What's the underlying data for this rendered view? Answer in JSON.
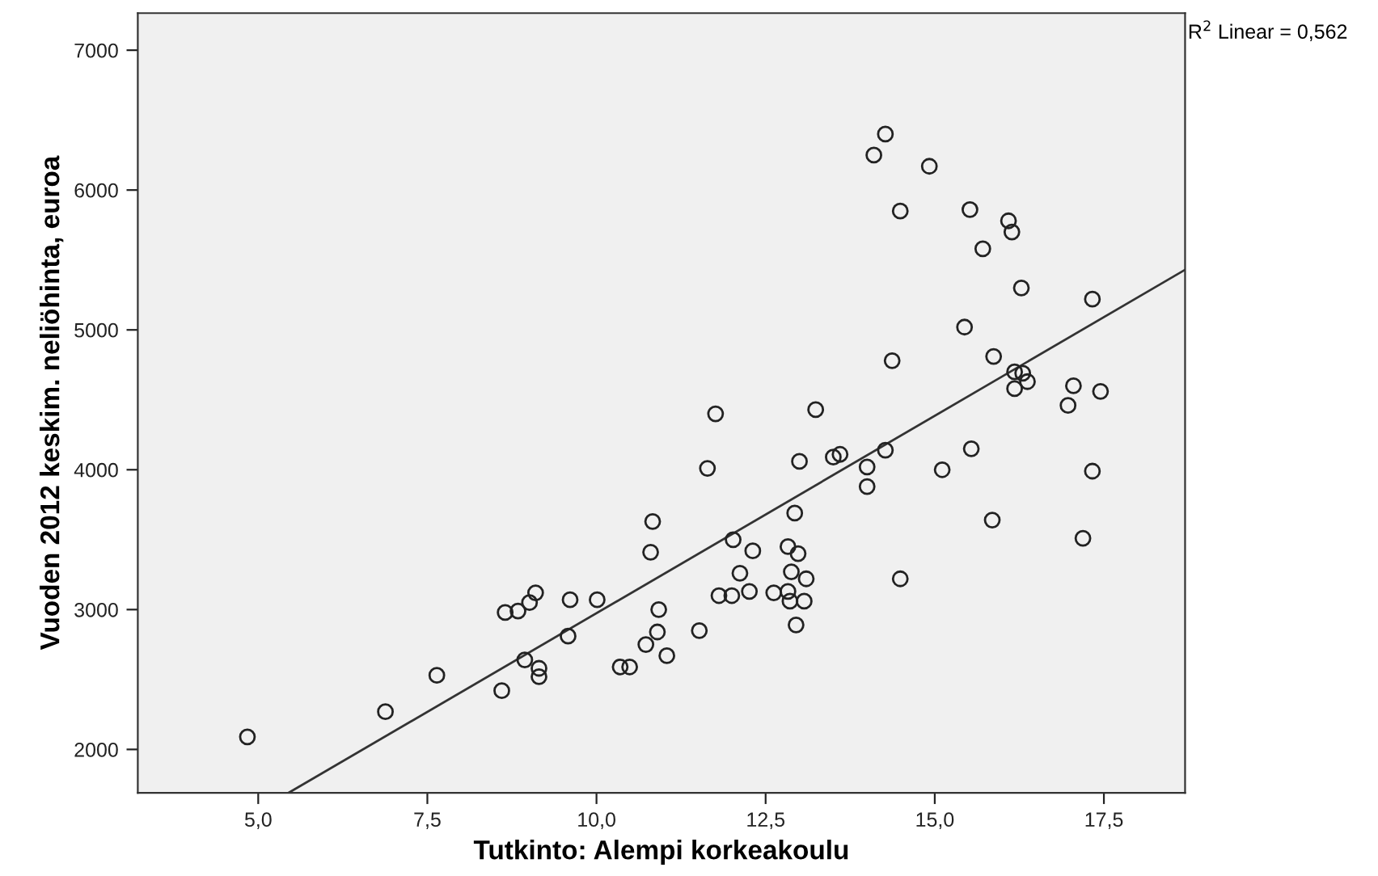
{
  "chart_data": {
    "type": "scatter",
    "xlabel": "Tutkinto: Alempi korkeakoulu",
    "ylabel": "Vuoden 2012 keskim. neliöhinta, euroa",
    "annotations": [
      "R$^{2}$ Linear = 0,562"
    ],
    "xlim": [
      3.22,
      18.7
    ],
    "ylim": [
      1690,
      7265
    ],
    "xticks": [
      {
        "value": 5,
        "label": "5,0"
      },
      {
        "value": 7.5,
        "label": "7,5"
      },
      {
        "value": 10,
        "label": "10,0"
      },
      {
        "value": 12.5,
        "label": "12,5"
      },
      {
        "value": 15,
        "label": "15,0"
      },
      {
        "value": 17.5,
        "label": "17,5"
      }
    ],
    "yticks": [
      2000,
      3000,
      4000,
      5000,
      6000,
      7000
    ],
    "grid": false,
    "legend": false,
    "marker": "circle",
    "series": [
      {
        "color": "#222222",
        "x": [
          4.84,
          6.88,
          7.64,
          8.6,
          8.65,
          8.84,
          8.94,
          9.01,
          9.1,
          9.15,
          9.15,
          9.58,
          9.61,
          10.01,
          10.35,
          10.49,
          10.73,
          10.8,
          10.83,
          10.9,
          10.92,
          11.04,
          11.52,
          11.64,
          11.76,
          11.81,
          12.0,
          12.02,
          12.12,
          12.26,
          12.31,
          12.62,
          12.83,
          12.86,
          13.07,
          12.88,
          13.1,
          12.83,
          12.98,
          12.93,
          12.95,
          13.0,
          13.24,
          13.5,
          13.6,
          14.0,
          14.0,
          14.27,
          14.37,
          14.27,
          14.1,
          14.92,
          14.49,
          15.52,
          16.09,
          16.14,
          15.71,
          16.28,
          17.33,
          15.44,
          15.87,
          16.18,
          16.3,
          16.37,
          16.18,
          17.05,
          17.45,
          16.97,
          15.54,
          15.11,
          17.33,
          15.85,
          17.19,
          14.49
        ],
        "values": [
          2090,
          2270,
          2530,
          2420,
          2980,
          2990,
          2640,
          3050,
          3120,
          2580,
          2520,
          2810,
          3070,
          3070,
          2590,
          2590,
          2750,
          3410,
          3630,
          2840,
          3000,
          2670,
          2850,
          4010,
          4400,
          3100,
          3100,
          3500,
          3260,
          3130,
          3420,
          3120,
          3130,
          3060,
          3060,
          3270,
          3220,
          3450,
          3400,
          3690,
          2890,
          4060,
          4430,
          4090,
          4110,
          4020,
          3880,
          4140,
          4780,
          6400,
          6250,
          6170,
          5850,
          5860,
          5780,
          5700,
          5580,
          5300,
          5220,
          5020,
          4810,
          4700,
          4690,
          4630,
          4580,
          4600,
          4560,
          4460,
          4150,
          4000,
          3990,
          3640,
          3510,
          3220
        ]
      },
      {
        "type": "line",
        "color": "#333333",
        "line_style": "solid",
        "marker": "none",
        "x": [
          5.45,
          18.7
        ],
        "values": [
          1690,
          5430
        ]
      }
    ]
  }
}
